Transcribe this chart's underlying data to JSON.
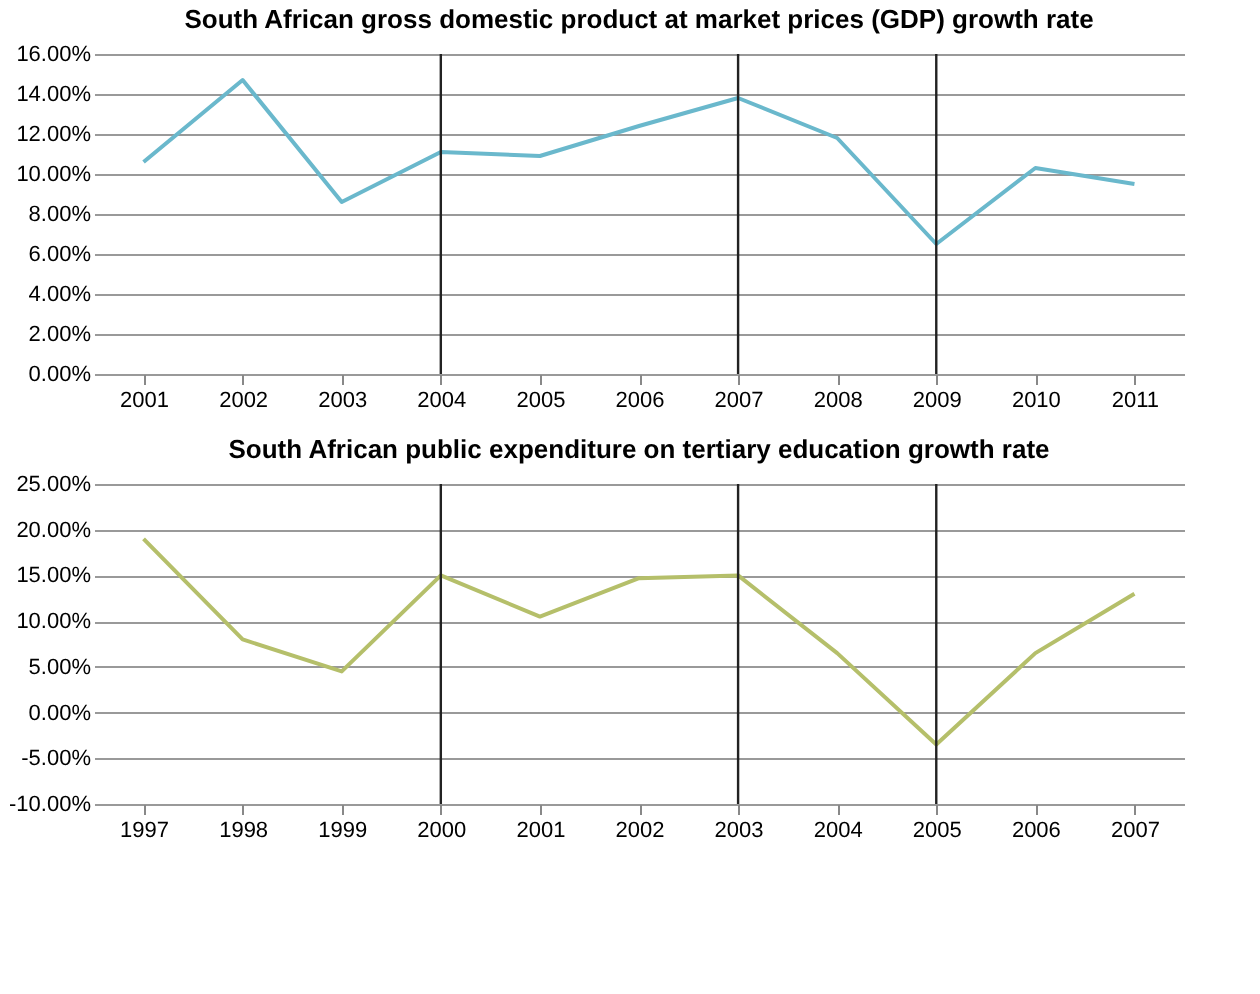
{
  "chart_data": [
    {
      "type": "line",
      "title": "South African gross domestic product at market prices (GDP) growth rate",
      "categories": [
        "2001",
        "2002",
        "2003",
        "2004",
        "2005",
        "2006",
        "2007",
        "2008",
        "2009",
        "2010",
        "2011"
      ],
      "series": [
        {
          "color": "#6ab8cc",
          "values": [
            10.6,
            14.7,
            8.6,
            11.1,
            10.9,
            12.4,
            13.8,
            11.8,
            6.5,
            10.3,
            9.5
          ]
        }
      ],
      "ylim": [
        0,
        16
      ],
      "yticks": [
        {
          "value": 0,
          "label": "0.00%"
        },
        {
          "value": 2,
          "label": "2.00%"
        },
        {
          "value": 4,
          "label": "4.00%"
        },
        {
          "value": 6,
          "label": "6.00%"
        },
        {
          "value": 8,
          "label": "8.00%"
        },
        {
          "value": 10,
          "label": "10.00%"
        },
        {
          "value": 12,
          "label": "12.00%"
        },
        {
          "value": 14,
          "label": "14.00%"
        },
        {
          "value": 16,
          "label": "16.00%"
        }
      ],
      "grid": "y",
      "ref_lines": [
        {
          "axis": "x",
          "value": "2004",
          "color": "#222222"
        },
        {
          "axis": "x",
          "value": "2007",
          "color": "#222222"
        },
        {
          "axis": "x",
          "value": "2009",
          "color": "#222222"
        }
      ]
    },
    {
      "type": "line",
      "title": "South African public expenditure on tertiary education growth rate",
      "categories": [
        "1997",
        "1998",
        "1999",
        "2000",
        "2001",
        "2002",
        "2003",
        "2004",
        "2005",
        "2006",
        "2007"
      ],
      "series": [
        {
          "color": "#b5bf6a",
          "values": [
            19.0,
            8.0,
            4.5,
            15.0,
            10.5,
            14.7,
            15.0,
            6.5,
            -3.5,
            6.5,
            13.0
          ]
        }
      ],
      "ylim": [
        -10,
        25
      ],
      "yticks": [
        {
          "value": -10,
          "label": "-10.00%"
        },
        {
          "value": -5,
          "label": "-5.00%"
        },
        {
          "value": 0,
          "label": "0.00%"
        },
        {
          "value": 5,
          "label": "5.00%"
        },
        {
          "value": 10,
          "label": "10.00%"
        },
        {
          "value": 15,
          "label": "15.00%"
        },
        {
          "value": 20,
          "label": "20.00%"
        },
        {
          "value": 25,
          "label": "25.00%"
        }
      ],
      "grid": "y",
      "ref_lines": [
        {
          "axis": "x",
          "value": "2000",
          "color": "#222222"
        },
        {
          "axis": "x",
          "value": "2003",
          "color": "#222222"
        },
        {
          "axis": "x",
          "value": "2005",
          "color": "#222222"
        }
      ]
    }
  ]
}
